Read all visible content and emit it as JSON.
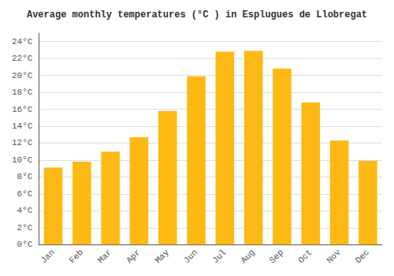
{
  "chart_data": {
    "type": "bar",
    "title": "Average monthly temperatures (°C ) in Esplugues de Llobregat",
    "categories": [
      "Jan",
      "Feb",
      "Mar",
      "Apr",
      "May",
      "Jun",
      "Jul",
      "Aug",
      "Sep",
      "Oct",
      "Nov",
      "Dec"
    ],
    "values": [
      9.1,
      9.8,
      11.0,
      12.7,
      15.8,
      19.9,
      22.8,
      22.9,
      20.8,
      16.8,
      12.3,
      9.9
    ],
    "color": "#FDB913",
    "ylim": [
      0,
      25
    ],
    "yticks": [
      {
        "value": 0,
        "label": "0°C"
      },
      {
        "value": 2,
        "label": "2°C"
      },
      {
        "value": 4,
        "label": "4°C"
      },
      {
        "value": 6,
        "label": "6°C"
      },
      {
        "value": 8,
        "label": "8°C"
      },
      {
        "value": 10,
        "label": "10°C"
      },
      {
        "value": 12,
        "label": "12°C"
      },
      {
        "value": 14,
        "label": "14°C"
      },
      {
        "value": 16,
        "label": "16°C"
      },
      {
        "value": 18,
        "label": "18°C"
      },
      {
        "value": 20,
        "label": "20°C"
      },
      {
        "value": 22,
        "label": "22°C"
      },
      {
        "value": 24,
        "label": "24°C"
      }
    ],
    "grid": true
  }
}
